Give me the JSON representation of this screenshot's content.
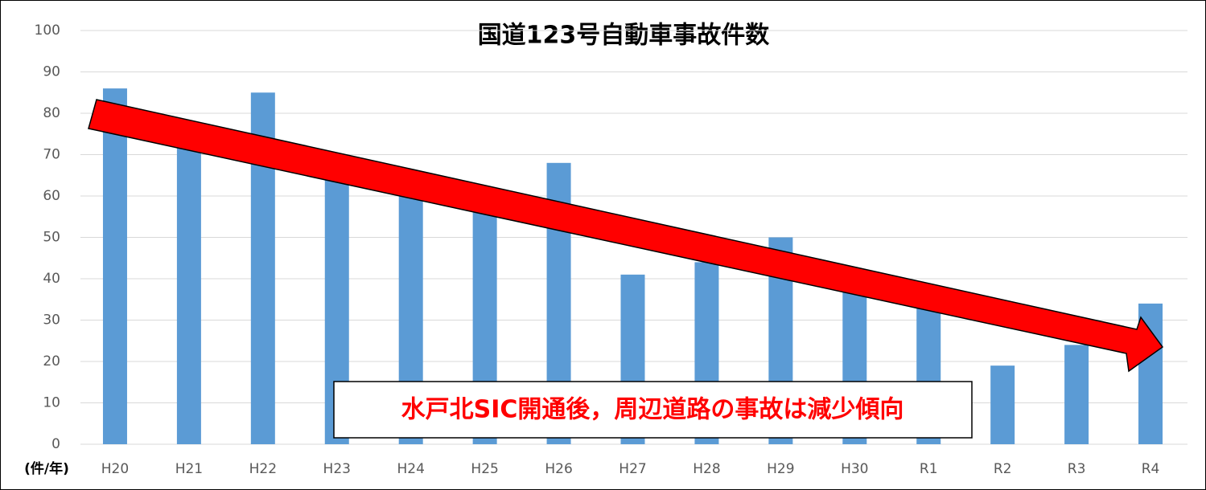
{
  "chart_data": {
    "type": "bar",
    "title": "国道123号自動車事故件数",
    "categories": [
      "H20",
      "H21",
      "H22",
      "H23",
      "H24",
      "H25",
      "H26",
      "H27",
      "H28",
      "H29",
      "H30",
      "R1",
      "R2",
      "R3",
      "R4"
    ],
    "values": [
      86,
      72,
      85,
      65,
      61,
      56,
      68,
      41,
      44,
      50,
      37,
      33,
      19,
      24,
      34
    ],
    "color": "#5b9bd5",
    "ylim": [
      0,
      100
    ],
    "yticks": [
      0,
      10,
      20,
      30,
      40,
      50,
      60,
      70,
      80,
      90,
      100
    ],
    "grid": true,
    "unit_label": "(件/年)",
    "annotation": "水戸北SIC開通後，周辺道路の事故は減少傾向"
  }
}
